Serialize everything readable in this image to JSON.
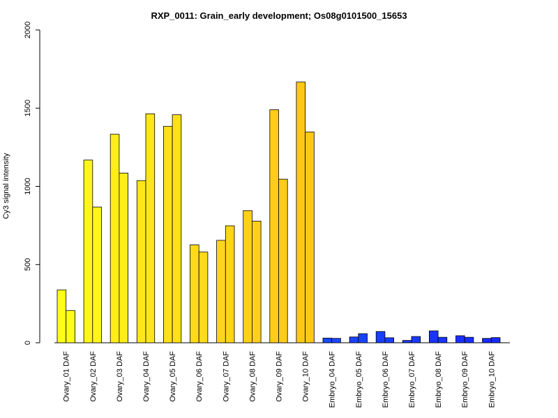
{
  "chart_data": {
    "type": "bar",
    "title": "RXP_0011: Grain_early development; Os08g0101500_15653",
    "ylabel": "Cy3 signal intensity",
    "xlabel": "",
    "ylim": [
      0,
      2000
    ],
    "yticks": [
      0,
      500,
      1000,
      1500,
      2000
    ],
    "grid": false,
    "legend": "none",
    "categories": [
      "Ovary_01 DAF",
      "Ovary_02 DAF",
      "Ovary_03 DAF",
      "Ovary_04 DAF",
      "Ovary_05 DAF",
      "Ovary_06 DAF",
      "Ovary_07 DAF",
      "Ovary_08 DAF",
      "Ovary_09 DAF",
      "Ovary_10 DAF",
      "Embryo_04 DAF",
      "Embryo_05 DAF",
      "Embryo_06 DAF",
      "Embryo_07 DAF",
      "Embryo_08 DAF",
      "Embryo_09 DAF",
      "Embryo_10 DAF"
    ],
    "series": [
      {
        "values": [
          338,
          1168,
          1333,
          1037,
          1384,
          626,
          655,
          845,
          1490,
          1667,
          30,
          37,
          72,
          15,
          76,
          45,
          28
        ]
      },
      {
        "values": [
          206,
          868,
          1085,
          1464,
          1458,
          580,
          748,
          778,
          1046,
          1348,
          28,
          58,
          32,
          40,
          35,
          35,
          33
        ]
      }
    ],
    "colors": [
      "#FFFF19",
      "#FFF619",
      "#FFED19",
      "#FFE619",
      "#FFE019",
      "#FFDA19",
      "#FFD519",
      "#FFD019",
      "#FFCC19",
      "#FFC819",
      "#1948FF",
      "#1943FF",
      "#193EFF",
      "#1939FF",
      "#1934FF",
      "#192FFF",
      "#192AFF"
    ]
  }
}
